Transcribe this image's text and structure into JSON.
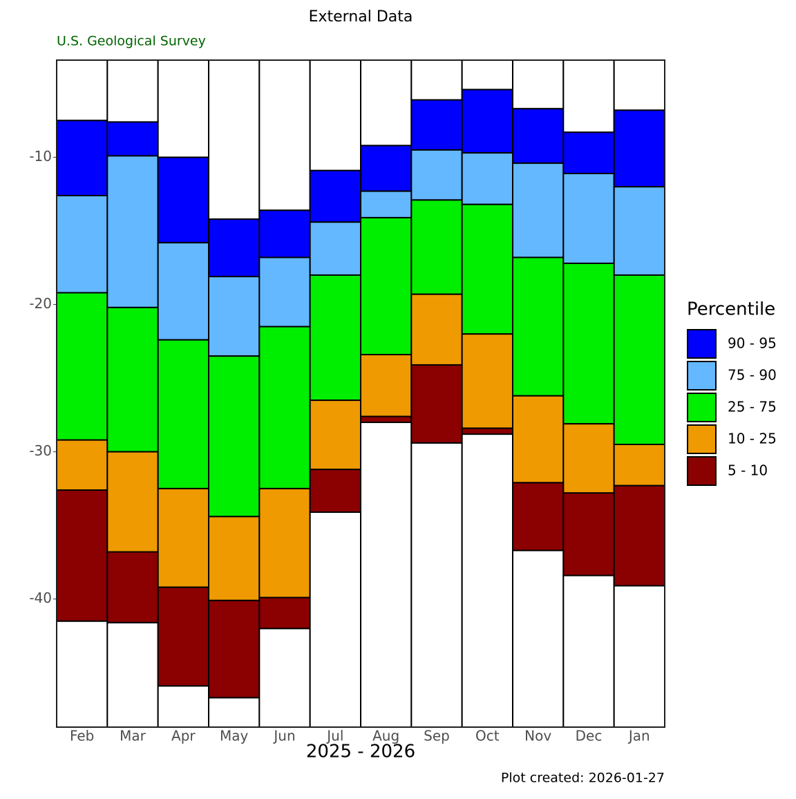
{
  "chart_data": {
    "type": "floating-bar",
    "title": "External Data",
    "subtitle": "U.S. Geological Survey",
    "x_label": "2025 - 2026",
    "caption": "Plot created: 2026-01-27",
    "legend_title": "Percentile",
    "categories": [
      "Feb",
      "Mar",
      "Apr",
      "May",
      "Jun",
      "Jul",
      "Aug",
      "Sep",
      "Oct",
      "Nov",
      "Dec",
      "Jan"
    ],
    "series": [
      {
        "name": "90 - 95",
        "color": "#0000ff",
        "values": [
          [
            -12.6,
            -7.5
          ],
          [
            -9.9,
            -7.6
          ],
          [
            -15.8,
            -10.0
          ],
          [
            -18.1,
            -14.2
          ],
          [
            -16.8,
            -13.6
          ],
          [
            -14.4,
            -10.9
          ],
          [
            -12.3,
            -9.2
          ],
          [
            -9.5,
            -6.1
          ],
          [
            -9.7,
            -5.4
          ],
          [
            -10.4,
            -6.7
          ],
          [
            -11.1,
            -8.3
          ],
          [
            -12.0,
            -6.8
          ]
        ]
      },
      {
        "name": "75 - 90",
        "color": "#63b8ff",
        "values": [
          [
            -19.2,
            -12.6
          ],
          [
            -20.2,
            -9.9
          ],
          [
            -22.4,
            -15.8
          ],
          [
            -23.5,
            -18.1
          ],
          [
            -21.5,
            -16.8
          ],
          [
            -18.0,
            -14.4
          ],
          [
            -14.1,
            -12.3
          ],
          [
            -12.9,
            -9.5
          ],
          [
            -13.2,
            -9.7
          ],
          [
            -16.8,
            -10.4
          ],
          [
            -17.2,
            -11.1
          ],
          [
            -18.0,
            -12.0
          ]
        ]
      },
      {
        "name": "25 - 75",
        "color": "#00ee00",
        "values": [
          [
            -29.2,
            -19.2
          ],
          [
            -30.0,
            -20.2
          ],
          [
            -32.5,
            -22.4
          ],
          [
            -34.4,
            -23.5
          ],
          [
            -32.5,
            -21.5
          ],
          [
            -26.5,
            -18.0
          ],
          [
            -23.4,
            -14.1
          ],
          [
            -19.3,
            -12.9
          ],
          [
            -22.0,
            -13.2
          ],
          [
            -26.2,
            -16.8
          ],
          [
            -28.1,
            -17.2
          ],
          [
            -29.5,
            -18.0
          ]
        ]
      },
      {
        "name": "10 - 25",
        "color": "#ee9a00",
        "values": [
          [
            -32.6,
            -29.2
          ],
          [
            -36.8,
            -30.0
          ],
          [
            -39.2,
            -32.5
          ],
          [
            -40.1,
            -34.4
          ],
          [
            -39.9,
            -32.5
          ],
          [
            -31.2,
            -26.5
          ],
          [
            -27.6,
            -23.4
          ],
          [
            -24.1,
            -19.3
          ],
          [
            -28.4,
            -22.0
          ],
          [
            -32.1,
            -26.2
          ],
          [
            -32.8,
            -28.1
          ],
          [
            -32.3,
            -29.5
          ]
        ]
      },
      {
        "name": "5 - 10",
        "color": "#8b0000",
        "values": [
          [
            -41.5,
            -32.6
          ],
          [
            -41.6,
            -36.8
          ],
          [
            -45.9,
            -39.2
          ],
          [
            -46.7,
            -40.1
          ],
          [
            -42.0,
            -39.9
          ],
          [
            -34.1,
            -31.2
          ],
          [
            -28.0,
            -27.6
          ],
          [
            -29.4,
            -24.1
          ],
          [
            -28.8,
            -28.4
          ],
          [
            -36.7,
            -32.1
          ],
          [
            -38.4,
            -32.8
          ],
          [
            -39.1,
            -32.3
          ]
        ]
      }
    ],
    "ylim": [
      -48.7,
      -3.4
    ],
    "yticks": [
      -10,
      -20,
      -30,
      -40
    ]
  }
}
